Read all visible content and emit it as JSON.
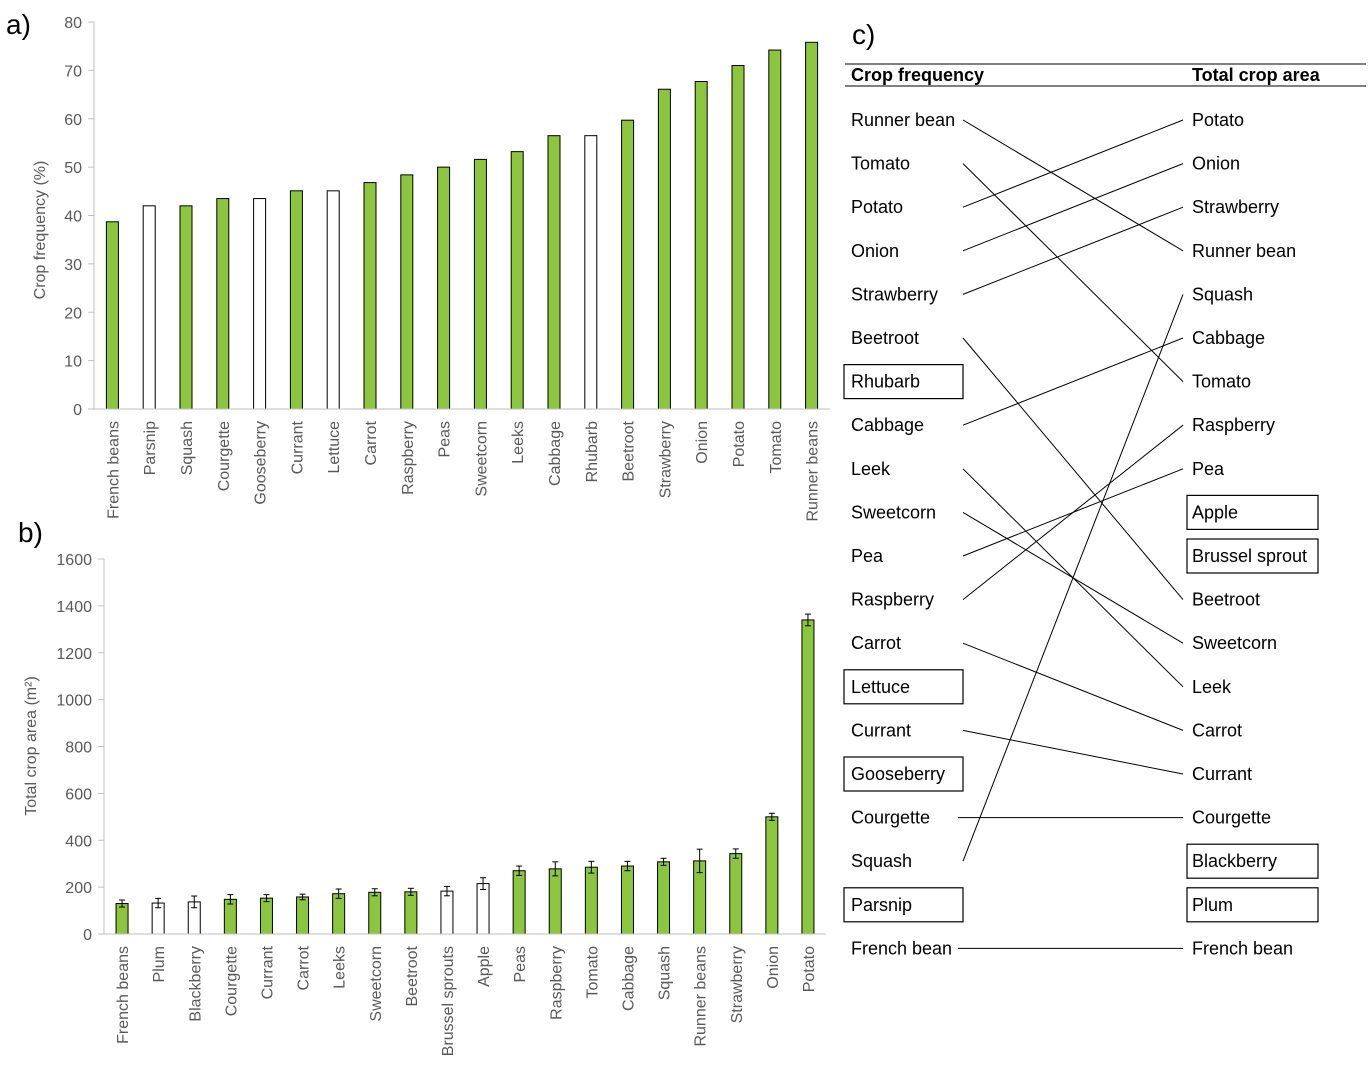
{
  "chart_data": [
    {
      "type": "bar",
      "panel": "a)",
      "ylabel": "Crop frequency (%)",
      "ylim": [
        0,
        80
      ],
      "yticks": [
        "0",
        "10",
        "20",
        "30",
        "40",
        "50",
        "60",
        "70",
        "80"
      ],
      "categories": [
        "French beans",
        "Parsnip",
        "Squash",
        "Courgette",
        "Gooseberry",
        "Currant",
        "Lettuce",
        "Carrot",
        "Raspberry",
        "Peas",
        "Sweetcorn",
        "Leeks",
        "Cabbage",
        "Rhubarb",
        "Beetroot",
        "Strawberry",
        "Onion",
        "Potato",
        "Tomato",
        "Runner beans"
      ],
      "values": [
        38.7,
        42.0,
        42.0,
        43.5,
        43.5,
        45.1,
        45.1,
        46.8,
        48.4,
        50.0,
        51.6,
        53.2,
        56.5,
        56.5,
        59.7,
        66.1,
        67.7,
        71.0,
        74.2,
        75.8
      ],
      "filled": [
        true,
        false,
        true,
        true,
        false,
        true,
        false,
        true,
        true,
        true,
        true,
        true,
        true,
        false,
        true,
        true,
        true,
        true,
        true,
        true
      ],
      "colors": {
        "fill": "#8cc63f",
        "empty": "#ffffff",
        "stroke": "#000000"
      }
    },
    {
      "type": "bar",
      "panel": "b)",
      "ylabel": "Total crop area (m²)",
      "ylim": [
        0,
        1600
      ],
      "yticks": [
        "0",
        "200",
        "400",
        "600",
        "800",
        "1000",
        "1200",
        "1400",
        "1600"
      ],
      "categories": [
        "French beans",
        "Plum",
        "Blackberry",
        "Courgette",
        "Currant",
        "Carrot",
        "Leeks",
        "Sweetcorn",
        "Beetroot",
        "Brussel sprouts",
        "Apple",
        "Peas",
        "Raspberry",
        "Tomato",
        "Cabbage",
        "Squash",
        "Runner beans",
        "Strawberry",
        "Onion",
        "Potato"
      ],
      "values": [
        130,
        132,
        137,
        148,
        153,
        158,
        172,
        178,
        180,
        183,
        215,
        270,
        278,
        285,
        290,
        308,
        312,
        343,
        500,
        1340
      ],
      "errors": [
        15,
        20,
        25,
        20,
        15,
        12,
        20,
        15,
        15,
        20,
        25,
        20,
        30,
        25,
        20,
        15,
        50,
        20,
        15,
        25
      ],
      "filled": [
        true,
        false,
        false,
        true,
        true,
        true,
        true,
        true,
        true,
        false,
        false,
        true,
        true,
        true,
        true,
        true,
        true,
        true,
        true,
        true
      ],
      "colors": {
        "fill": "#8cc63f",
        "empty": "#ffffff",
        "stroke": "#000000"
      }
    },
    {
      "type": "table",
      "panel": "c)",
      "header_left": "Crop frequency",
      "header_right": "Total crop area",
      "left": [
        "Runner bean",
        "Tomato",
        "Potato",
        "Onion",
        "Strawberry",
        "Beetroot",
        "Rhubarb",
        "Cabbage",
        "Leek",
        "Sweetcorn",
        "Pea",
        "Raspberry",
        "Carrot",
        "Lettuce",
        "Currant",
        "Gooseberry",
        "Courgette",
        "Squash",
        "Parsnip",
        "French bean"
      ],
      "left_boxed": [
        false,
        false,
        false,
        false,
        false,
        false,
        true,
        false,
        false,
        false,
        false,
        false,
        false,
        true,
        false,
        true,
        false,
        false,
        true,
        false
      ],
      "right": [
        "Potato",
        "Onion",
        "Strawberry",
        "Runner bean",
        "Squash",
        "Cabbage",
        "Tomato",
        "Raspberry",
        "Pea",
        "Apple",
        "Brussel sprout",
        "Beetroot",
        "Sweetcorn",
        "Leek",
        "Carrot",
        "Currant",
        "Courgette",
        "Blackberry",
        "Plum",
        "French bean"
      ],
      "right_boxed": [
        false,
        false,
        false,
        false,
        false,
        false,
        false,
        false,
        false,
        true,
        true,
        false,
        false,
        false,
        false,
        false,
        false,
        true,
        true,
        false
      ],
      "links": [
        [
          0,
          3
        ],
        [
          1,
          6
        ],
        [
          2,
          0
        ],
        [
          3,
          1
        ],
        [
          4,
          2
        ],
        [
          5,
          11
        ],
        [
          7,
          5
        ],
        [
          8,
          13
        ],
        [
          9,
          12
        ],
        [
          10,
          8
        ],
        [
          11,
          7
        ],
        [
          12,
          14
        ],
        [
          14,
          15
        ],
        [
          16,
          16
        ],
        [
          17,
          4
        ],
        [
          19,
          19
        ]
      ]
    }
  ]
}
